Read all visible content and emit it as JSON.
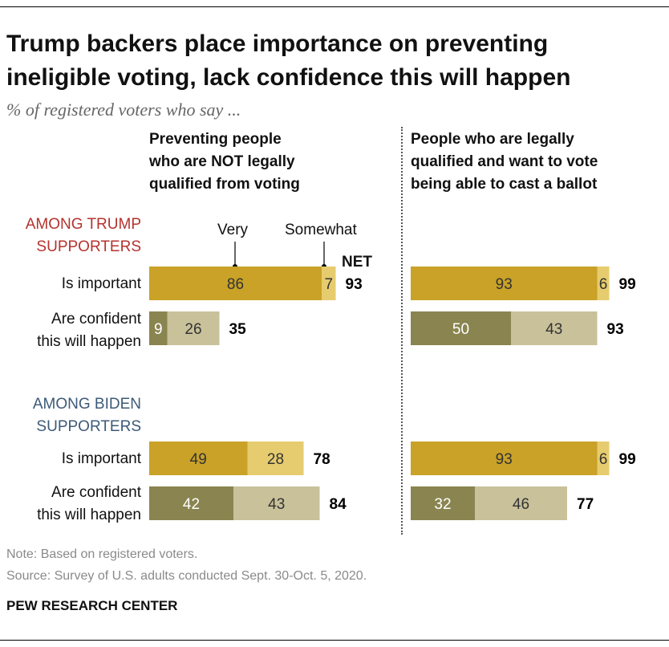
{
  "title": "Trump backers place importance on preventing ineligible voting, lack confidence this will happen",
  "subtitle": "% of registered voters who say ...",
  "column_headers": [
    "Preventing people\nwho are NOT legally\nqualified from voting",
    "People who are legally\nqualified and want to vote\nbeing able to cast a ballot"
  ],
  "groups": [
    "AMONG TRUMP\nSUPPORTERS",
    "AMONG BIDEN\nSUPPORTERS"
  ],
  "row_labels": {
    "important": "Is important",
    "confident": "Are confident\nthis will happen"
  },
  "legend": {
    "very": "Very",
    "somewhat": "Somewhat",
    "net": "NET"
  },
  "colors": {
    "important_very": "#c9a227",
    "important_somewhat": "#e6cc6e",
    "confident_very": "#8a8550",
    "confident_somewhat": "#c8c19a",
    "trump_group": "#b5332e",
    "biden_group": "#3d5a78"
  },
  "chart_data": {
    "type": "bar",
    "orientation": "horizontal",
    "stacked": true,
    "xlim": [
      0,
      100
    ],
    "panels": [
      {
        "name": "Preventing people who are NOT legally qualified from voting",
        "rows": [
          {
            "group": "AMONG TRUMP SUPPORTERS",
            "label": "Is important",
            "very": 86,
            "somewhat": 7,
            "net": 93
          },
          {
            "group": "AMONG TRUMP SUPPORTERS",
            "label": "Are confident this will happen",
            "very": 9,
            "somewhat": 26,
            "net": 35
          },
          {
            "group": "AMONG BIDEN SUPPORTERS",
            "label": "Is important",
            "very": 49,
            "somewhat": 28,
            "net": 78
          },
          {
            "group": "AMONG BIDEN SUPPORTERS",
            "label": "Are confident this will happen",
            "very": 42,
            "somewhat": 43,
            "net": 84
          }
        ]
      },
      {
        "name": "People who are legally qualified and want to vote being able to cast a ballot",
        "rows": [
          {
            "group": "AMONG TRUMP SUPPORTERS",
            "label": "Is important",
            "very": 93,
            "somewhat": 6,
            "net": 99
          },
          {
            "group": "AMONG TRUMP SUPPORTERS",
            "label": "Are confident this will happen",
            "very": 50,
            "somewhat": 43,
            "net": 93
          },
          {
            "group": "AMONG BIDEN SUPPORTERS",
            "label": "Is important",
            "very": 93,
            "somewhat": 6,
            "net": 99
          },
          {
            "group": "AMONG BIDEN SUPPORTERS",
            "label": "Are confident this will happen",
            "very": 32,
            "somewhat": 46,
            "net": 77
          }
        ]
      }
    ]
  },
  "notes": [
    "Note: Based on registered voters.",
    "Source: Survey of U.S. adults conducted Sept. 30-Oct. 5, 2020."
  ],
  "brand": "PEW RESEARCH CENTER"
}
